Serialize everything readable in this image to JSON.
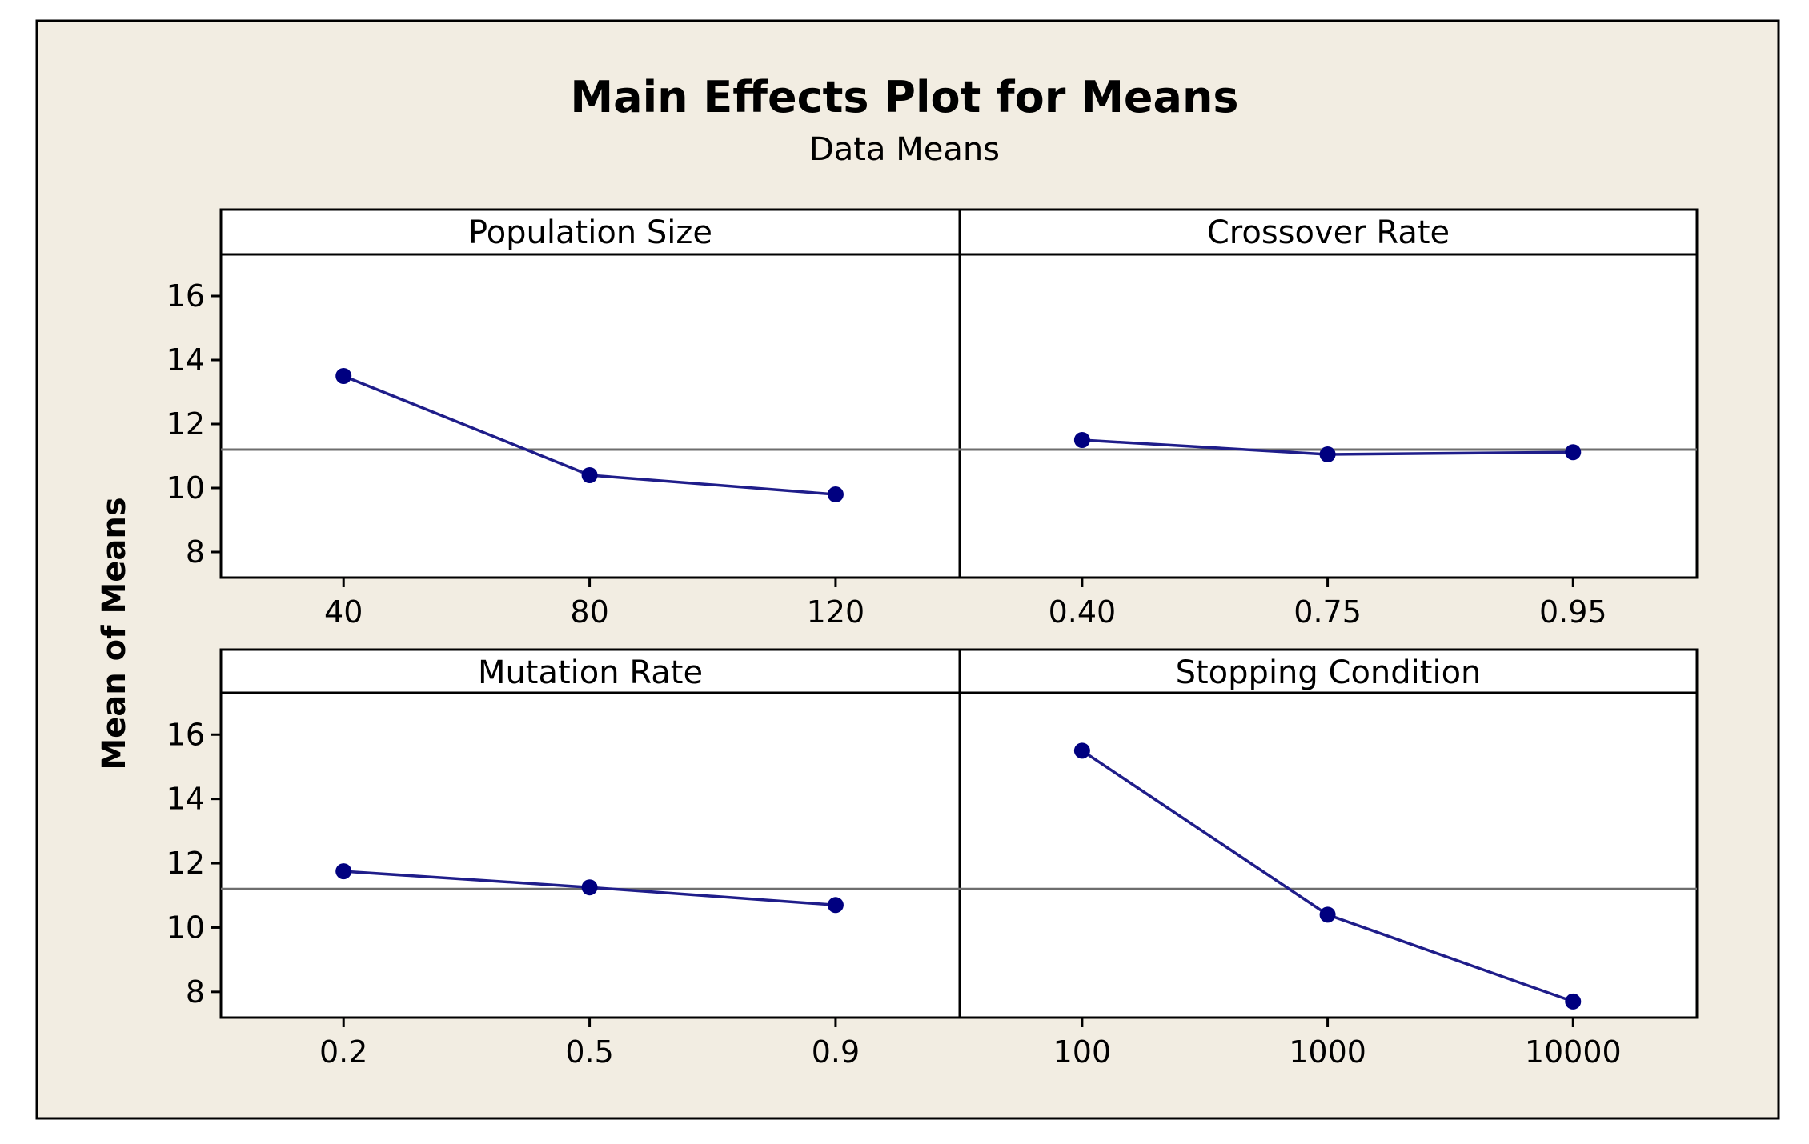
{
  "chart_data": {
    "type": "line",
    "title": "Main Effects Plot for Means",
    "subtitle": "Data Means",
    "ylabel": "Mean of Means",
    "ylim": [
      7.2,
      17.3
    ],
    "yticks": [
      8,
      10,
      12,
      14,
      16
    ],
    "grand_mean": 11.2,
    "colors": {
      "background": "#f2ede2",
      "series": "#1f1d8a",
      "marker": "#000080",
      "reference_line": "#6e6e6e",
      "frame": "#000000"
    },
    "panels": [
      {
        "name": "Population Size",
        "categories": [
          "40",
          "80",
          "120"
        ],
        "values": [
          13.5,
          10.4,
          9.8
        ]
      },
      {
        "name": "Crossover Rate",
        "categories": [
          "0.40",
          "0.75",
          "0.95"
        ],
        "values": [
          11.5,
          11.05,
          11.12
        ]
      },
      {
        "name": "Mutation Rate",
        "categories": [
          "0.2",
          "0.5",
          "0.9"
        ],
        "values": [
          11.75,
          11.25,
          10.7
        ]
      },
      {
        "name": "Stopping Condition",
        "categories": [
          "100",
          "1000",
          "10000"
        ],
        "values": [
          15.5,
          10.4,
          7.7
        ]
      }
    ]
  }
}
